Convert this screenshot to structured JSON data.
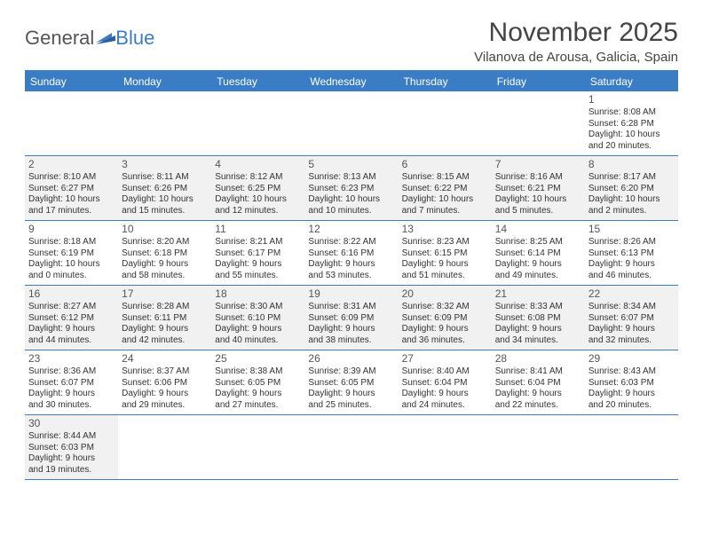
{
  "logo": {
    "text1": "General",
    "text2": "Blue"
  },
  "title": "November 2025",
  "location": "Vilanova de Arousa, Galicia, Spain",
  "colors": {
    "header_bg": "#3b7dc4",
    "header_text": "#ffffff",
    "shaded_bg": "#f1f1f1",
    "border": "#3b7dc4",
    "text": "#333333"
  },
  "weekdays": [
    "Sunday",
    "Monday",
    "Tuesday",
    "Wednesday",
    "Thursday",
    "Friday",
    "Saturday"
  ],
  "weeks": [
    [
      {
        "day": "",
        "sunrise": "",
        "sunset": "",
        "daylight1": "",
        "daylight2": "",
        "shaded": false
      },
      {
        "day": "",
        "sunrise": "",
        "sunset": "",
        "daylight1": "",
        "daylight2": "",
        "shaded": false
      },
      {
        "day": "",
        "sunrise": "",
        "sunset": "",
        "daylight1": "",
        "daylight2": "",
        "shaded": false
      },
      {
        "day": "",
        "sunrise": "",
        "sunset": "",
        "daylight1": "",
        "daylight2": "",
        "shaded": false
      },
      {
        "day": "",
        "sunrise": "",
        "sunset": "",
        "daylight1": "",
        "daylight2": "",
        "shaded": false
      },
      {
        "day": "",
        "sunrise": "",
        "sunset": "",
        "daylight1": "",
        "daylight2": "",
        "shaded": false
      },
      {
        "day": "1",
        "sunrise": "Sunrise: 8:08 AM",
        "sunset": "Sunset: 6:28 PM",
        "daylight1": "Daylight: 10 hours",
        "daylight2": "and 20 minutes.",
        "shaded": false
      }
    ],
    [
      {
        "day": "2",
        "sunrise": "Sunrise: 8:10 AM",
        "sunset": "Sunset: 6:27 PM",
        "daylight1": "Daylight: 10 hours",
        "daylight2": "and 17 minutes.",
        "shaded": true
      },
      {
        "day": "3",
        "sunrise": "Sunrise: 8:11 AM",
        "sunset": "Sunset: 6:26 PM",
        "daylight1": "Daylight: 10 hours",
        "daylight2": "and 15 minutes.",
        "shaded": true
      },
      {
        "day": "4",
        "sunrise": "Sunrise: 8:12 AM",
        "sunset": "Sunset: 6:25 PM",
        "daylight1": "Daylight: 10 hours",
        "daylight2": "and 12 minutes.",
        "shaded": true
      },
      {
        "day": "5",
        "sunrise": "Sunrise: 8:13 AM",
        "sunset": "Sunset: 6:23 PM",
        "daylight1": "Daylight: 10 hours",
        "daylight2": "and 10 minutes.",
        "shaded": true
      },
      {
        "day": "6",
        "sunrise": "Sunrise: 8:15 AM",
        "sunset": "Sunset: 6:22 PM",
        "daylight1": "Daylight: 10 hours",
        "daylight2": "and 7 minutes.",
        "shaded": true
      },
      {
        "day": "7",
        "sunrise": "Sunrise: 8:16 AM",
        "sunset": "Sunset: 6:21 PM",
        "daylight1": "Daylight: 10 hours",
        "daylight2": "and 5 minutes.",
        "shaded": true
      },
      {
        "day": "8",
        "sunrise": "Sunrise: 8:17 AM",
        "sunset": "Sunset: 6:20 PM",
        "daylight1": "Daylight: 10 hours",
        "daylight2": "and 2 minutes.",
        "shaded": true
      }
    ],
    [
      {
        "day": "9",
        "sunrise": "Sunrise: 8:18 AM",
        "sunset": "Sunset: 6:19 PM",
        "daylight1": "Daylight: 10 hours",
        "daylight2": "and 0 minutes.",
        "shaded": false
      },
      {
        "day": "10",
        "sunrise": "Sunrise: 8:20 AM",
        "sunset": "Sunset: 6:18 PM",
        "daylight1": "Daylight: 9 hours",
        "daylight2": "and 58 minutes.",
        "shaded": false
      },
      {
        "day": "11",
        "sunrise": "Sunrise: 8:21 AM",
        "sunset": "Sunset: 6:17 PM",
        "daylight1": "Daylight: 9 hours",
        "daylight2": "and 55 minutes.",
        "shaded": false
      },
      {
        "day": "12",
        "sunrise": "Sunrise: 8:22 AM",
        "sunset": "Sunset: 6:16 PM",
        "daylight1": "Daylight: 9 hours",
        "daylight2": "and 53 minutes.",
        "shaded": false
      },
      {
        "day": "13",
        "sunrise": "Sunrise: 8:23 AM",
        "sunset": "Sunset: 6:15 PM",
        "daylight1": "Daylight: 9 hours",
        "daylight2": "and 51 minutes.",
        "shaded": false
      },
      {
        "day": "14",
        "sunrise": "Sunrise: 8:25 AM",
        "sunset": "Sunset: 6:14 PM",
        "daylight1": "Daylight: 9 hours",
        "daylight2": "and 49 minutes.",
        "shaded": false
      },
      {
        "day": "15",
        "sunrise": "Sunrise: 8:26 AM",
        "sunset": "Sunset: 6:13 PM",
        "daylight1": "Daylight: 9 hours",
        "daylight2": "and 46 minutes.",
        "shaded": false
      }
    ],
    [
      {
        "day": "16",
        "sunrise": "Sunrise: 8:27 AM",
        "sunset": "Sunset: 6:12 PM",
        "daylight1": "Daylight: 9 hours",
        "daylight2": "and 44 minutes.",
        "shaded": true
      },
      {
        "day": "17",
        "sunrise": "Sunrise: 8:28 AM",
        "sunset": "Sunset: 6:11 PM",
        "daylight1": "Daylight: 9 hours",
        "daylight2": "and 42 minutes.",
        "shaded": true
      },
      {
        "day": "18",
        "sunrise": "Sunrise: 8:30 AM",
        "sunset": "Sunset: 6:10 PM",
        "daylight1": "Daylight: 9 hours",
        "daylight2": "and 40 minutes.",
        "shaded": true
      },
      {
        "day": "19",
        "sunrise": "Sunrise: 8:31 AM",
        "sunset": "Sunset: 6:09 PM",
        "daylight1": "Daylight: 9 hours",
        "daylight2": "and 38 minutes.",
        "shaded": true
      },
      {
        "day": "20",
        "sunrise": "Sunrise: 8:32 AM",
        "sunset": "Sunset: 6:09 PM",
        "daylight1": "Daylight: 9 hours",
        "daylight2": "and 36 minutes.",
        "shaded": true
      },
      {
        "day": "21",
        "sunrise": "Sunrise: 8:33 AM",
        "sunset": "Sunset: 6:08 PM",
        "daylight1": "Daylight: 9 hours",
        "daylight2": "and 34 minutes.",
        "shaded": true
      },
      {
        "day": "22",
        "sunrise": "Sunrise: 8:34 AM",
        "sunset": "Sunset: 6:07 PM",
        "daylight1": "Daylight: 9 hours",
        "daylight2": "and 32 minutes.",
        "shaded": true
      }
    ],
    [
      {
        "day": "23",
        "sunrise": "Sunrise: 8:36 AM",
        "sunset": "Sunset: 6:07 PM",
        "daylight1": "Daylight: 9 hours",
        "daylight2": "and 30 minutes.",
        "shaded": false
      },
      {
        "day": "24",
        "sunrise": "Sunrise: 8:37 AM",
        "sunset": "Sunset: 6:06 PM",
        "daylight1": "Daylight: 9 hours",
        "daylight2": "and 29 minutes.",
        "shaded": false
      },
      {
        "day": "25",
        "sunrise": "Sunrise: 8:38 AM",
        "sunset": "Sunset: 6:05 PM",
        "daylight1": "Daylight: 9 hours",
        "daylight2": "and 27 minutes.",
        "shaded": false
      },
      {
        "day": "26",
        "sunrise": "Sunrise: 8:39 AM",
        "sunset": "Sunset: 6:05 PM",
        "daylight1": "Daylight: 9 hours",
        "daylight2": "and 25 minutes.",
        "shaded": false
      },
      {
        "day": "27",
        "sunrise": "Sunrise: 8:40 AM",
        "sunset": "Sunset: 6:04 PM",
        "daylight1": "Daylight: 9 hours",
        "daylight2": "and 24 minutes.",
        "shaded": false
      },
      {
        "day": "28",
        "sunrise": "Sunrise: 8:41 AM",
        "sunset": "Sunset: 6:04 PM",
        "daylight1": "Daylight: 9 hours",
        "daylight2": "and 22 minutes.",
        "shaded": false
      },
      {
        "day": "29",
        "sunrise": "Sunrise: 8:43 AM",
        "sunset": "Sunset: 6:03 PM",
        "daylight1": "Daylight: 9 hours",
        "daylight2": "and 20 minutes.",
        "shaded": false
      }
    ],
    [
      {
        "day": "30",
        "sunrise": "Sunrise: 8:44 AM",
        "sunset": "Sunset: 6:03 PM",
        "daylight1": "Daylight: 9 hours",
        "daylight2": "and 19 minutes.",
        "shaded": true
      },
      {
        "day": "",
        "sunrise": "",
        "sunset": "",
        "daylight1": "",
        "daylight2": "",
        "shaded": false
      },
      {
        "day": "",
        "sunrise": "",
        "sunset": "",
        "daylight1": "",
        "daylight2": "",
        "shaded": false
      },
      {
        "day": "",
        "sunrise": "",
        "sunset": "",
        "daylight1": "",
        "daylight2": "",
        "shaded": false
      },
      {
        "day": "",
        "sunrise": "",
        "sunset": "",
        "daylight1": "",
        "daylight2": "",
        "shaded": false
      },
      {
        "day": "",
        "sunrise": "",
        "sunset": "",
        "daylight1": "",
        "daylight2": "",
        "shaded": false
      },
      {
        "day": "",
        "sunrise": "",
        "sunset": "",
        "daylight1": "",
        "daylight2": "",
        "shaded": false
      }
    ]
  ]
}
